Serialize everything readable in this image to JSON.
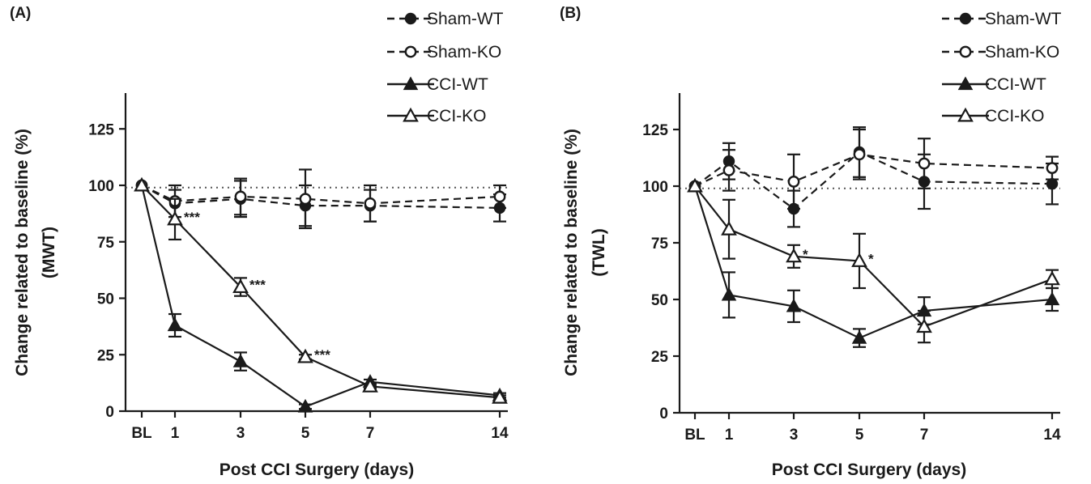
{
  "chart_data": [
    {
      "type": "line",
      "panel_label": "(A)",
      "xlabel": "Post CCI Surgery (days)",
      "ylabel": "Change related to baseline (%)",
      "ylabel2": "(MWT)",
      "categories": [
        "BL",
        "1",
        "3",
        "5",
        "7",
        "14"
      ],
      "x": [
        0,
        1,
        3,
        5,
        7,
        14
      ],
      "yticks": [
        "0",
        "25",
        "50",
        "75",
        "100",
        "125"
      ],
      "ylim": [
        0,
        140
      ],
      "reference_line": 99,
      "series": [
        {
          "name": "Sham-WT",
          "marker": "circle-filled",
          "dashed": true,
          "values": [
            100,
            92,
            94,
            91,
            91,
            90
          ],
          "errors": [
            null,
            6,
            8,
            9,
            7,
            6
          ]
        },
        {
          "name": "Sham-KO",
          "marker": "circle-open",
          "dashed": true,
          "values": [
            100,
            93,
            95,
            94,
            92,
            95
          ],
          "errors": [
            null,
            7,
            8,
            13,
            8,
            5
          ]
        },
        {
          "name": "CCI-WT",
          "marker": "triangle-filled",
          "dashed": false,
          "values": [
            100,
            38,
            22,
            2,
            13,
            7
          ],
          "errors": [
            null,
            5,
            4,
            1,
            1,
            1
          ]
        },
        {
          "name": "CCI-KO",
          "marker": "triangle-open",
          "dashed": false,
          "values": [
            100,
            85,
            55,
            24,
            11,
            6
          ],
          "errors": [
            null,
            9,
            4,
            1,
            1,
            1
          ]
        }
      ],
      "annotations": [
        {
          "text": "***",
          "series": "CCI-KO",
          "x_index": 1
        },
        {
          "text": "***",
          "series": "CCI-KO",
          "x_index": 2
        },
        {
          "text": "***",
          "series": "CCI-KO",
          "x_index": 3
        }
      ],
      "legend_position": "top-right"
    },
    {
      "type": "line",
      "panel_label": "(B)",
      "xlabel": "Post CCI Surgery (days)",
      "ylabel": "Change related to baseline (%)",
      "ylabel2": "(TWL)",
      "categories": [
        "BL",
        "1",
        "3",
        "5",
        "7",
        "14"
      ],
      "x": [
        0,
        1,
        3,
        5,
        7,
        14
      ],
      "yticks": [
        "0",
        "25",
        "50",
        "75",
        "100",
        "125"
      ],
      "ylim": [
        0,
        140
      ],
      "reference_line": 99,
      "series": [
        {
          "name": "Sham-WT",
          "marker": "circle-filled",
          "dashed": true,
          "values": [
            100,
            111,
            90,
            115,
            102,
            101
          ],
          "errors": [
            null,
            8,
            8,
            11,
            12,
            9
          ]
        },
        {
          "name": "Sham-KO",
          "marker": "circle-open",
          "dashed": true,
          "values": [
            100,
            107,
            102,
            114,
            110,
            108
          ],
          "errors": [
            null,
            9,
            12,
            11,
            11,
            5
          ]
        },
        {
          "name": "CCI-WT",
          "marker": "triangle-filled",
          "dashed": false,
          "values": [
            100,
            52,
            47,
            33,
            45,
            50
          ],
          "errors": [
            null,
            10,
            7,
            4,
            6,
            5
          ]
        },
        {
          "name": "CCI-KO",
          "marker": "triangle-open",
          "dashed": false,
          "values": [
            100,
            81,
            69,
            67,
            38,
            59
          ],
          "errors": [
            null,
            13,
            5,
            12,
            7,
            4
          ]
        }
      ],
      "annotations": [
        {
          "text": "*",
          "series": "CCI-KO",
          "x_index": 2
        },
        {
          "text": "*",
          "series": "CCI-KO",
          "x_index": 3
        }
      ],
      "legend_position": "top-right"
    }
  ]
}
